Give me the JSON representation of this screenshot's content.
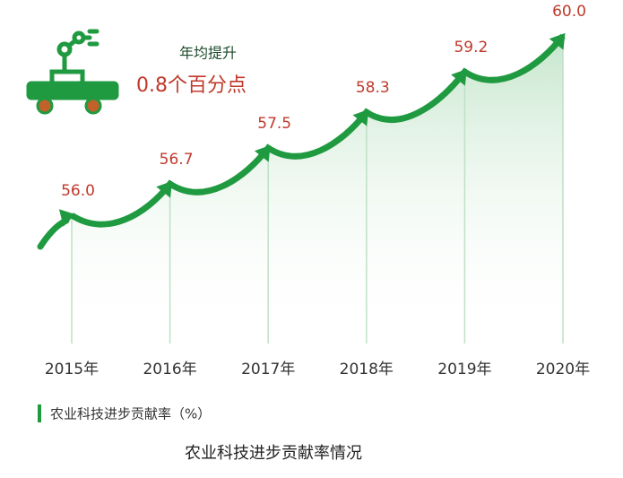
{
  "chart_data": {
    "type": "line",
    "title": "农业科技进步贡献率情况",
    "series_label": "农业科技进步贡献率（%）",
    "annotation": {
      "line1": "年均提升",
      "line2": "0.8个百分点"
    },
    "categories": [
      "2015年",
      "2016年",
      "2017年",
      "2018年",
      "2019年",
      "2020年"
    ],
    "values": [
      56.0,
      56.7,
      57.5,
      58.3,
      59.2,
      60.0
    ],
    "value_labels": [
      "56.0",
      "56.7",
      "57.5",
      "58.3",
      "59.2",
      "60.0"
    ],
    "color": "#1f9a40",
    "label_color": "#c0392b"
  }
}
